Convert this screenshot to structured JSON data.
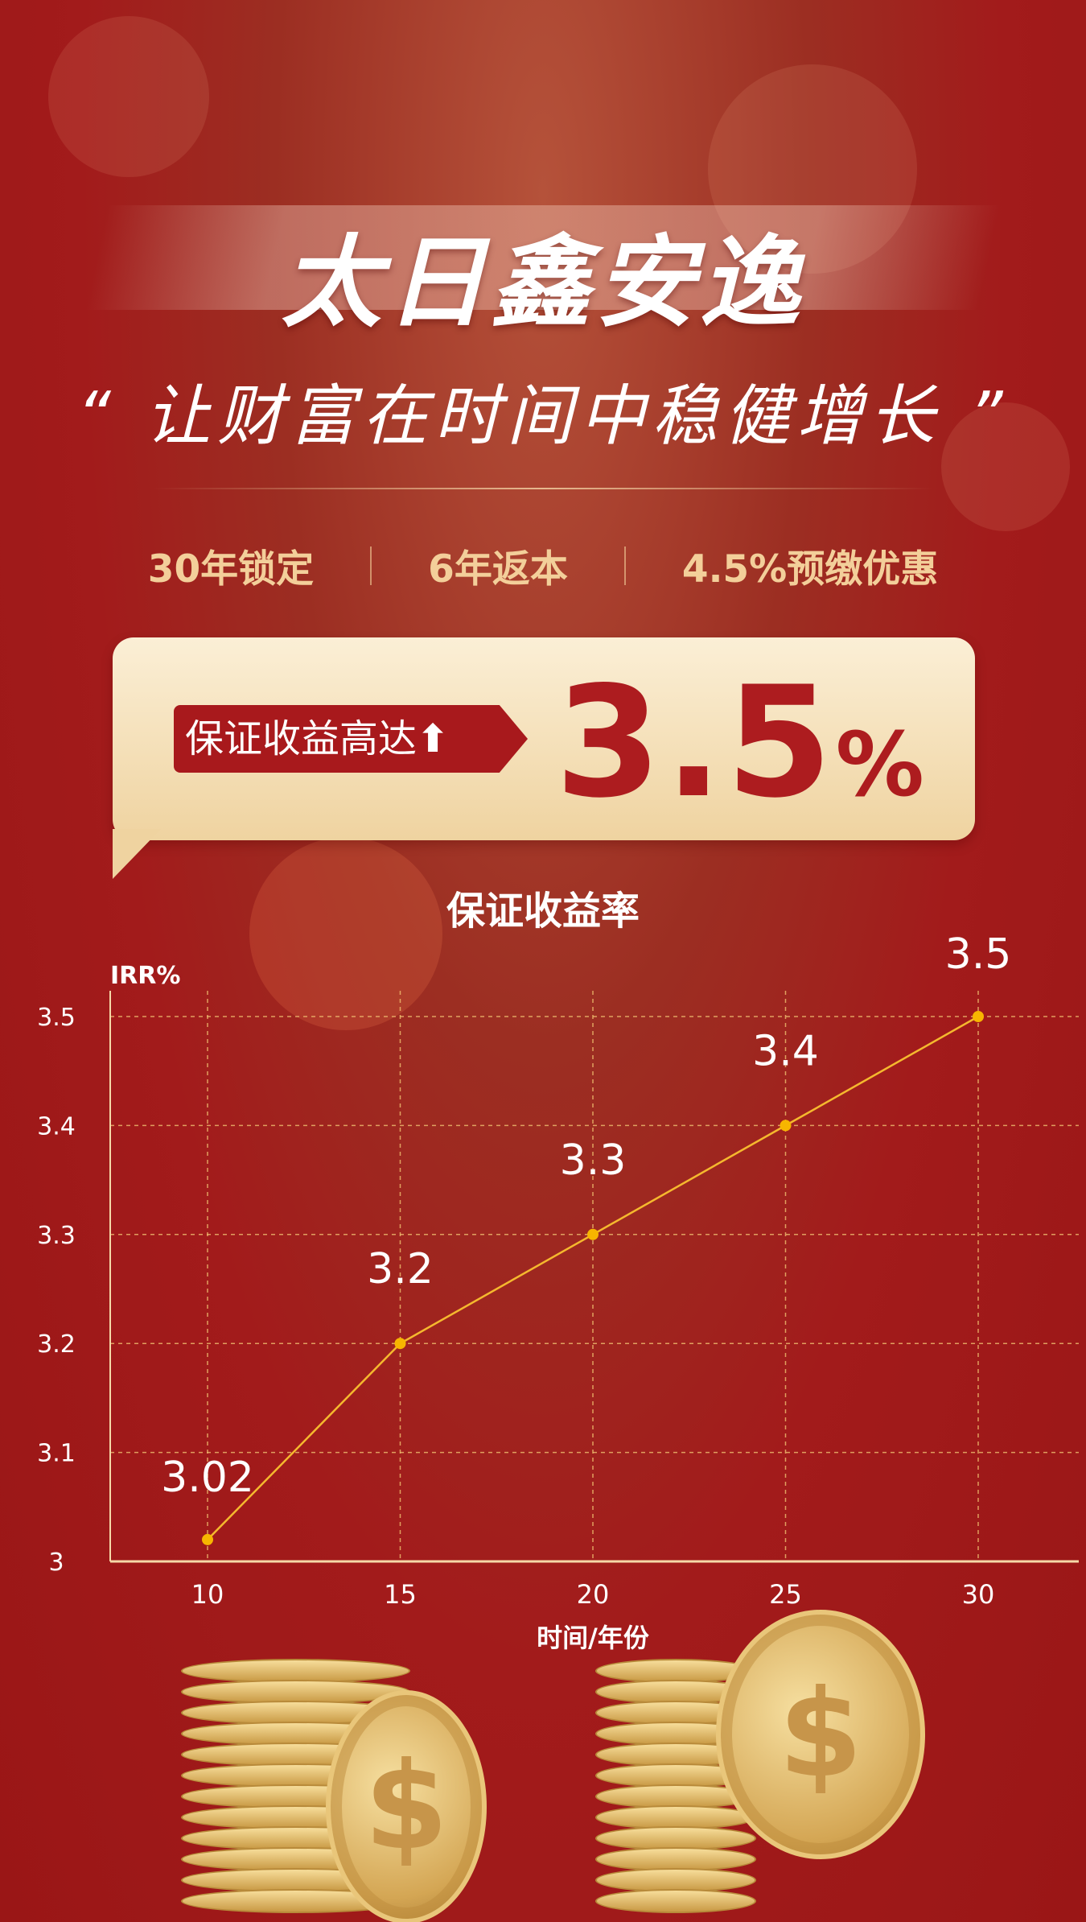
{
  "header": {
    "title": "太日鑫安逸",
    "slogan": "“ 让财富在时间中稳健增长 ”"
  },
  "features": [
    "30年锁定",
    "6年返本",
    "4.5%预缴优惠"
  ],
  "banner": {
    "tag": "保证收益高达",
    "tag_icon": "arrow-up-icon",
    "tag_arrow": "⬆",
    "rate": "3.5",
    "rate_unit": "%"
  },
  "colors": {
    "background": "#a21b1b",
    "gold": "#f3cf9a",
    "line": "#f5b82e",
    "banner_red": "#ad1c1f"
  },
  "chart_data": {
    "type": "line",
    "title": "保证收益率",
    "ylabel": "IRR%",
    "xlabel": "时间/年份",
    "x": [
      10,
      15,
      20,
      25,
      30
    ],
    "values": [
      3.02,
      3.2,
      3.3,
      3.4,
      3.5
    ],
    "data_labels": [
      "3.02",
      "3.2",
      "3.3",
      "3.4",
      "3.5"
    ],
    "xticks": [
      "10",
      "15",
      "20",
      "25",
      "30"
    ],
    "yticks": [
      "3",
      "3.1",
      "3.2",
      "3.3",
      "3.4",
      "3.5"
    ],
    "ylim": [
      3,
      3.5
    ],
    "xlim": [
      10,
      30
    ],
    "grid": true
  }
}
